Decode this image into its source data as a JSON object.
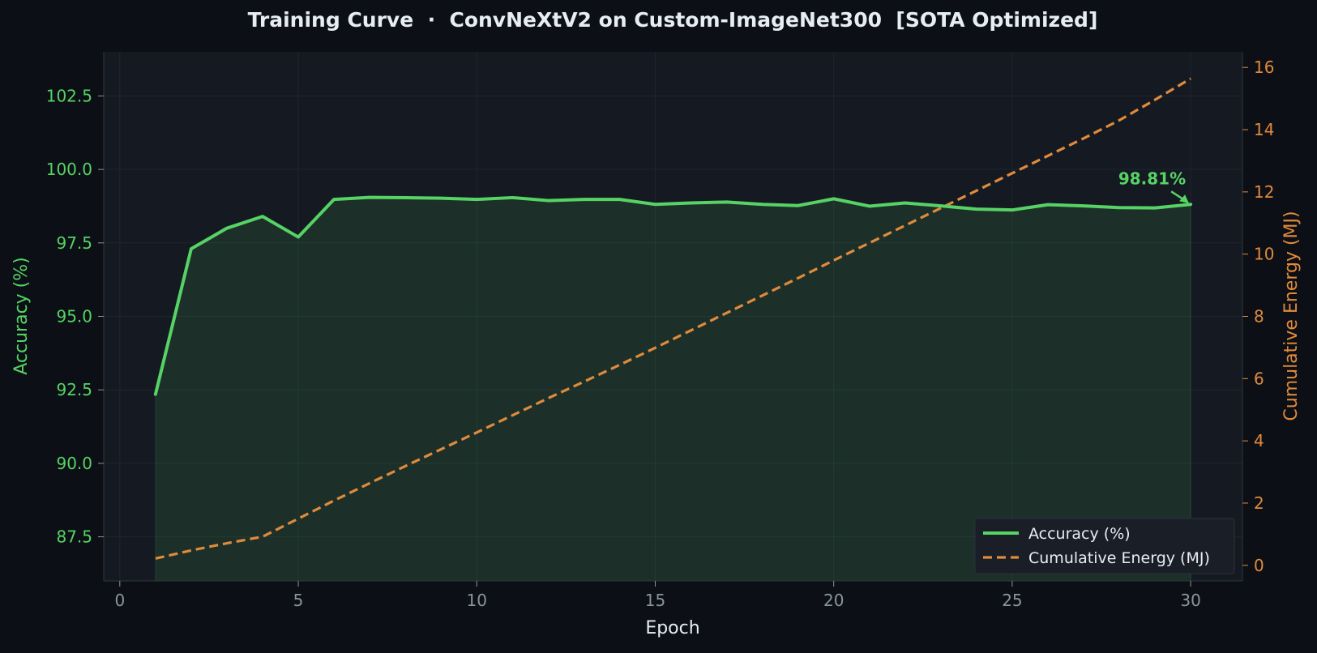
{
  "chart_data": {
    "type": "line",
    "title": "Training Curve  ·  ConvNeXtV2 on Custom-ImageNet300  [SOTA Optimized]",
    "xlabel": "Epoch",
    "ylabel_left": "Accuracy (%)",
    "ylabel_right": "Cumulative Energy (MJ)",
    "xlim": [
      -0.45,
      31.45
    ],
    "ylim_left": [
      86.0,
      104.0
    ],
    "ylim_right": [
      -0.5,
      16.5
    ],
    "x_ticks": [
      0,
      5,
      10,
      15,
      20,
      25,
      30
    ],
    "y_ticks_left": [
      87.5,
      90.0,
      92.5,
      95.0,
      97.5,
      100.0,
      102.5
    ],
    "y_ticks_right": [
      0,
      2,
      4,
      6,
      8,
      10,
      12,
      14,
      16
    ],
    "grid": true,
    "legend_position": "bottom-right",
    "x": [
      1,
      2,
      3,
      4,
      5,
      6,
      7,
      8,
      9,
      10,
      11,
      12,
      13,
      14,
      15,
      16,
      17,
      18,
      19,
      20,
      21,
      22,
      23,
      24,
      25,
      26,
      27,
      28,
      29,
      30
    ],
    "series": [
      {
        "name": "Accuracy (%)",
        "axis": "left",
        "color": "#56d364",
        "style": "solid",
        "fill": true,
        "values": [
          92.35,
          97.3,
          98.0,
          98.4,
          97.7,
          98.98,
          99.05,
          99.04,
          99.02,
          98.98,
          99.04,
          98.94,
          98.98,
          98.98,
          98.81,
          98.86,
          98.89,
          98.81,
          98.77,
          99.0,
          98.75,
          98.86,
          98.76,
          98.65,
          98.62,
          98.8,
          98.76,
          98.7,
          98.69,
          98.81
        ]
      },
      {
        "name": "Cumulative Energy (MJ)",
        "axis": "right",
        "color": "#e08a3c",
        "style": "dashed",
        "fill": false,
        "values": [
          0.22,
          0.48,
          0.71,
          0.92,
          1.5,
          2.08,
          2.64,
          3.19,
          3.73,
          4.27,
          4.82,
          5.37,
          5.9,
          6.44,
          6.99,
          7.55,
          8.11,
          8.67,
          9.23,
          9.8,
          10.36,
          10.92,
          11.48,
          12.04,
          12.6,
          13.16,
          13.72,
          14.3,
          14.96,
          15.64
        ]
      }
    ],
    "annotation": {
      "text": "98.81%",
      "x": 30,
      "y": 98.81,
      "color": "#56d364"
    }
  }
}
